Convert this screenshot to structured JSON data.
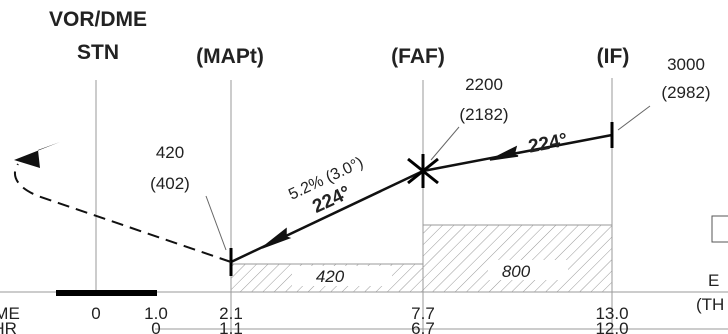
{
  "fixes": {
    "vor_dme_line1": "VOR/DME",
    "vor_dme_line2": "STN",
    "mapt": "(MAPt)",
    "faf": "(FAF)",
    "if": "(IF)"
  },
  "altitudes": {
    "mapt_alt": "420",
    "mapt_hat": "(402)",
    "faf_alt": "2200",
    "faf_hat": "(2182)",
    "if_alt": "3000",
    "if_hat": "(2982)"
  },
  "gradient": "5.2% (3.0°)",
  "courses": {
    "final": "224°",
    "intermediate": "224°"
  },
  "segment_minimums": {
    "final": "420",
    "intermediate": "800"
  },
  "scale_labels": {
    "dme_row_label": "DME",
    "thr_row_label": "THR",
    "right_note": "E",
    "right_note2": "(TH"
  },
  "dme_distances": [
    "0",
    "1.0",
    "2.1",
    "7.7",
    "13.0"
  ],
  "thr_distances": [
    "0",
    "1.1",
    "6.7",
    "12.0"
  ]
}
